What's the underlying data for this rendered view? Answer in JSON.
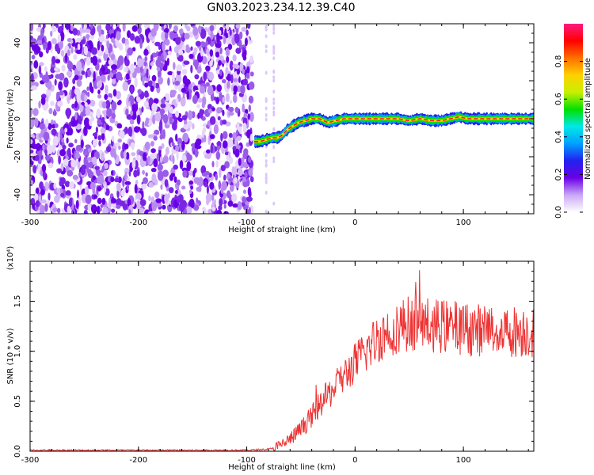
{
  "title": "GN03.2023.234.12.39.C40",
  "chart_data": [
    {
      "type": "heatmap",
      "panel": "spectrogram",
      "xlabel": "Height of straight line (km)",
      "ylabel": "Frequency (Hz)",
      "xlim": [
        -300,
        165
      ],
      "ylim": [
        -50,
        50
      ],
      "xticks": [
        -300,
        -200,
        -100,
        0,
        100
      ],
      "yticks": [
        -40,
        -20,
        0,
        20,
        40
      ],
      "noise_region_x": [
        -300,
        -95
      ],
      "sparse_dots_x": [
        -82,
        -75
      ],
      "track": [
        {
          "x": -93,
          "y": -12
        },
        {
          "x": -88,
          "y": -12
        },
        {
          "x": -82,
          "y": -11
        },
        {
          "x": -76,
          "y": -10
        },
        {
          "x": -72,
          "y": -10
        },
        {
          "x": -68,
          "y": -9
        },
        {
          "x": -63,
          "y": -6
        },
        {
          "x": -58,
          "y": -4
        },
        {
          "x": -52,
          "y": -2
        },
        {
          "x": -46,
          "y": -1
        },
        {
          "x": -40,
          "y": 0
        },
        {
          "x": -33,
          "y": 0
        },
        {
          "x": -25,
          "y": -2
        },
        {
          "x": -18,
          "y": -1
        },
        {
          "x": -10,
          "y": 0
        },
        {
          "x": 0,
          "y": 0
        },
        {
          "x": 10,
          "y": 0
        },
        {
          "x": 20,
          "y": 0
        },
        {
          "x": 30,
          "y": 0
        },
        {
          "x": 40,
          "y": 0
        },
        {
          "x": 50,
          "y": -1
        },
        {
          "x": 60,
          "y": 0
        },
        {
          "x": 70,
          "y": -1
        },
        {
          "x": 80,
          "y": -1
        },
        {
          "x": 88,
          "y": 0
        },
        {
          "x": 96,
          "y": 1
        },
        {
          "x": 104,
          "y": 0
        },
        {
          "x": 112,
          "y": 0
        },
        {
          "x": 122,
          "y": 0
        },
        {
          "x": 132,
          "y": 0
        },
        {
          "x": 142,
          "y": 0
        },
        {
          "x": 152,
          "y": 0
        },
        {
          "x": 165,
          "y": 0
        }
      ],
      "colorbar": {
        "label": "Normalized spectral amplitude",
        "range": [
          0,
          1
        ],
        "ticks": [
          "0.0",
          "0.2",
          "0.4",
          "0.6",
          "0.8"
        ],
        "colors": [
          "#ffffff",
          "#c9a8f6",
          "#6a00e6",
          "#2222ee",
          "#00a0ff",
          "#00e8e8",
          "#00e000",
          "#c8f000",
          "#ffd000",
          "#ff7000",
          "#ff0000",
          "#ff1a80"
        ]
      }
    },
    {
      "type": "line",
      "panel": "snr",
      "xlabel": "Height of straight line (km)",
      "ylabel": "SNR (10 * v/v)",
      "scale_label": "(x10⁴)",
      "xlim": [
        -300,
        165
      ],
      "ylim": [
        0,
        1.9
      ],
      "xticks": [
        -300,
        -200,
        -100,
        0,
        100
      ],
      "yticks": [
        "0.0",
        "0.5",
        "1.0",
        "1.5"
      ],
      "color": "#ee3333",
      "series": [
        {
          "x": [
            -300,
            -250,
            -200,
            -150,
            -100,
            -80,
            -70,
            -60,
            -50,
            -40,
            -30,
            -20,
            -10,
            0,
            10,
            20,
            30,
            40,
            50,
            60,
            70,
            80,
            90,
            100,
            110,
            120,
            130,
            140,
            150,
            165
          ],
          "values": [
            0.01,
            0.01,
            0.01,
            0.01,
            0.01,
            0.02,
            0.05,
            0.12,
            0.22,
            0.35,
            0.5,
            0.62,
            0.75,
            0.88,
            1.0,
            1.12,
            1.2,
            1.25,
            1.28,
            1.28,
            1.26,
            1.25,
            1.24,
            1.23,
            1.22,
            1.21,
            1.21,
            1.2,
            1.2,
            1.2
          ]
        }
      ]
    }
  ]
}
